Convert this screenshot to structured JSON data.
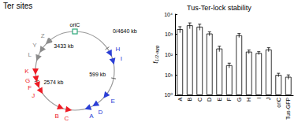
{
  "diagram": {
    "title": "Ter sites",
    "origin_label": "oriC",
    "origin_color": "#2ca87a",
    "positions": [
      "0/4640 kb",
      "599 kb",
      "2574 kb",
      "3433 kb"
    ],
    "sites": [
      {
        "label": "H",
        "color": "#2b3fd6"
      },
      {
        "label": "I",
        "color": "#2b3fd6"
      },
      {
        "label": "E",
        "color": "#2b3fd6"
      },
      {
        "label": "D",
        "color": "#2b3fd6"
      },
      {
        "label": "A",
        "color": "#2b3fd6"
      },
      {
        "label": "C",
        "color": "#ee1c25"
      },
      {
        "label": "B",
        "color": "#ee1c25"
      },
      {
        "label": "J",
        "color": "#ee1c25"
      },
      {
        "label": "F",
        "color": "#ee1c25"
      },
      {
        "label": "G",
        "color": "#ee1c25"
      },
      {
        "label": "K",
        "color": "#ee1c25"
      },
      {
        "label": "L",
        "color": "#8c8c8c"
      },
      {
        "label": "Y",
        "color": "#8c8c8c"
      },
      {
        "label": "Z",
        "color": "#8c8c8c"
      }
    ]
  },
  "chart_data": {
    "type": "bar",
    "title": "Tus-Ter-lock stability",
    "y_label": {
      "main": "t",
      "sub": "1/2-agg"
    },
    "categories": [
      "A",
      "B",
      "C",
      "D",
      "E",
      "F",
      "G",
      "H",
      "I",
      "J",
      "oriC",
      "Tus-GFP"
    ],
    "values": [
      1800,
      2800,
      2400,
      1100,
      200,
      30,
      900,
      140,
      120,
      180,
      10,
      8
    ],
    "errors": [
      600,
      900,
      800,
      250,
      60,
      8,
      200,
      30,
      20,
      40,
      2,
      2
    ],
    "color": "#ffffff",
    "log": "y",
    "ylim": [
      1,
      10000
    ],
    "yticks": [
      {
        "value": 1,
        "label": "10⁰"
      },
      {
        "value": 10,
        "label": "10¹"
      },
      {
        "value": 100,
        "label": "10²"
      },
      {
        "value": 1000,
        "label": "10³"
      },
      {
        "value": 10000,
        "label": "10⁴"
      }
    ],
    "grid": false
  }
}
